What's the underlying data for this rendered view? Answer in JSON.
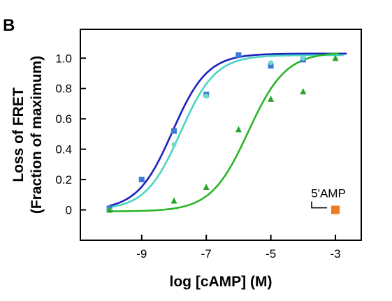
{
  "panel_label": "B",
  "chart_data": {
    "type": "scatter",
    "title": "",
    "xlabel": "log [cAMP] (M)",
    "ylabel": "Loss of FRET",
    "ylabel_sub": "(Fraction of maximum)",
    "xlim": [
      -10.9,
      -2.2
    ],
    "ylim": [
      -0.2,
      1.19
    ],
    "xticks": [
      -9,
      -7,
      -5,
      -3
    ],
    "xtick_labels": [
      "-9",
      "-7",
      "-5",
      "-3"
    ],
    "yticks": [
      0,
      0.2,
      0.4,
      0.6,
      0.8,
      1.0
    ],
    "ytick_labels": [
      "0",
      "0.2",
      "0.4",
      "0.6",
      "0.8",
      "1.0"
    ],
    "grid": false,
    "series": [
      {
        "color": "#1f1fbf",
        "marker": "square",
        "marker_color": "#3a7bd5",
        "points": [
          [
            -10,
            0.01
          ],
          [
            -9,
            0.2
          ],
          [
            -8,
            0.52
          ],
          [
            -7,
            0.76
          ],
          [
            -6,
            1.02
          ],
          [
            -5,
            0.95
          ],
          [
            -4,
            0.99
          ]
        ],
        "curve": {
          "bottom": 0.0,
          "top": 1.03,
          "logEC50": -8.05,
          "hill": 0.8,
          "x_from": -10,
          "x_to": -2.65
        }
      },
      {
        "color": "#48d6c2",
        "marker": "circle",
        "marker_color": "#6fd8cf",
        "points": [
          [
            -10,
            0.0
          ],
          [
            -8,
            0.43
          ],
          [
            -7,
            0.75
          ],
          [
            -5,
            0.97
          ],
          [
            -4,
            1.0
          ]
        ],
        "curve": {
          "bottom": 0.0,
          "top": 1.02,
          "logEC50": -7.8,
          "hill": 0.8,
          "x_from": -10,
          "x_to": -2.75
        }
      },
      {
        "color": "#2ab52a",
        "marker": "triangle",
        "marker_color": "#2aa52a",
        "points": [
          [
            -10,
            0.0
          ],
          [
            -8,
            0.06
          ],
          [
            -7,
            0.15
          ],
          [
            -6,
            0.53
          ],
          [
            -5,
            0.73
          ],
          [
            -4,
            0.78
          ],
          [
            -3,
            1.0
          ]
        ],
        "curve": {
          "bottom": -0.01,
          "top": 1.04,
          "logEC50": -5.7,
          "hill": 0.75,
          "x_from": -10,
          "x_to": -2.9
        }
      }
    ],
    "annotations": [
      {
        "text": "5'AMP",
        "marker": "square",
        "color": "#f07a1e",
        "x": -3,
        "y": 0
      }
    ]
  }
}
